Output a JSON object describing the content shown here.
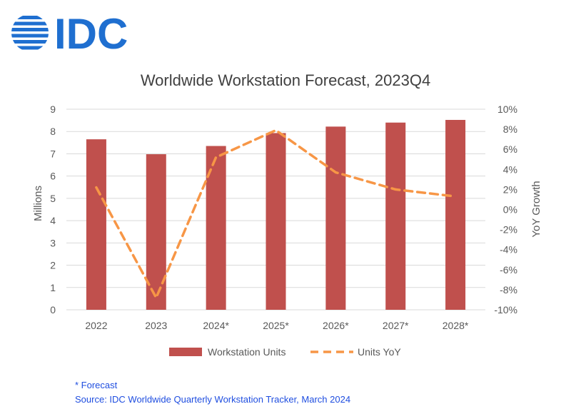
{
  "logo": {
    "text": "IDC",
    "color": "#1f6fd0"
  },
  "chart_data": {
    "type": "bar",
    "title": "Worldwide Workstation Forecast, 2023Q4",
    "categories": [
      "2022",
      "2023",
      "2024*",
      "2025*",
      "2026*",
      "2027*",
      "2028*"
    ],
    "ylabel": "Millions",
    "y2label": "YoY Growth",
    "ylim": [
      0,
      9
    ],
    "y2lim": [
      -10,
      10
    ],
    "yticks": [
      "0",
      "1",
      "2",
      "3",
      "4",
      "5",
      "6",
      "7",
      "8",
      "9"
    ],
    "y2ticks": [
      "-10%",
      "-8%",
      "-6%",
      "-4%",
      "-2%",
      "0%",
      "2%",
      "4%",
      "6%",
      "8%",
      "10%"
    ],
    "grid": true,
    "legend_position": "bottom",
    "series": [
      {
        "name": "Workstation Units",
        "type": "bar",
        "axis": "left",
        "color": "#c0504d",
        "values": [
          7.65,
          6.98,
          7.35,
          7.93,
          8.22,
          8.4,
          8.52
        ]
      },
      {
        "name": "Units YoY",
        "type": "line",
        "style": "dashed",
        "axis": "right",
        "color": "#f79646",
        "values": [
          2.2,
          -8.8,
          5.2,
          7.9,
          3.7,
          2.0,
          1.3
        ]
      }
    ]
  },
  "footnotes": {
    "forecast": "* Forecast",
    "source": "Source:  IDC Worldwide Quarterly Workstation Tracker, March 2024"
  }
}
